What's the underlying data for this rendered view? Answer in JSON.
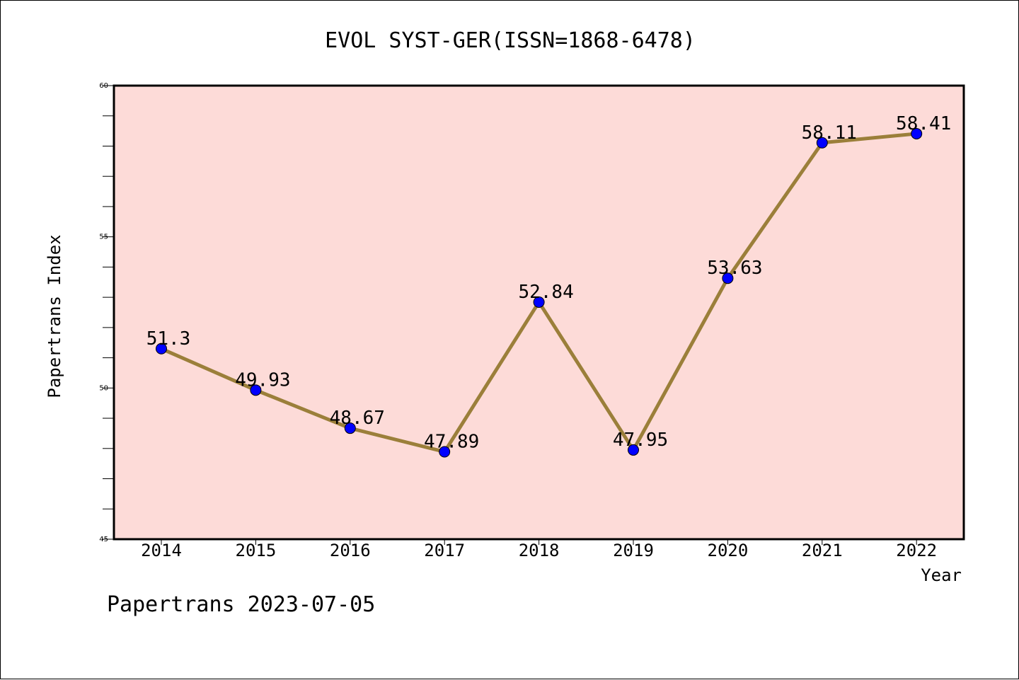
{
  "chart_data": {
    "type": "line",
    "title": "EVOL SYST-GER(ISSN=1868-6478)",
    "xlabel": "Year",
    "ylabel": "Papertrans Index",
    "categories": [
      "2014",
      "2015",
      "2016",
      "2017",
      "2018",
      "2019",
      "2020",
      "2021",
      "2022"
    ],
    "series": [
      {
        "values": [
          51.3,
          49.93,
          48.67,
          47.89,
          52.84,
          47.95,
          53.63,
          58.11,
          58.41
        ],
        "labels": [
          "51.3",
          "49.93",
          "48.67",
          "47.89",
          "52.84",
          "47.95",
          "53.63",
          "58.11",
          "58.41"
        ],
        "line_color": "#9b7f3a",
        "marker_color": "#0000ff"
      }
    ],
    "ylim": [
      45,
      60
    ],
    "yticks": [
      "45",
      "50",
      "55",
      "60"
    ],
    "plot_background": "#fddbd8",
    "grid": false,
    "legend": "none"
  },
  "footer": "Papertrans 2023-07-05"
}
